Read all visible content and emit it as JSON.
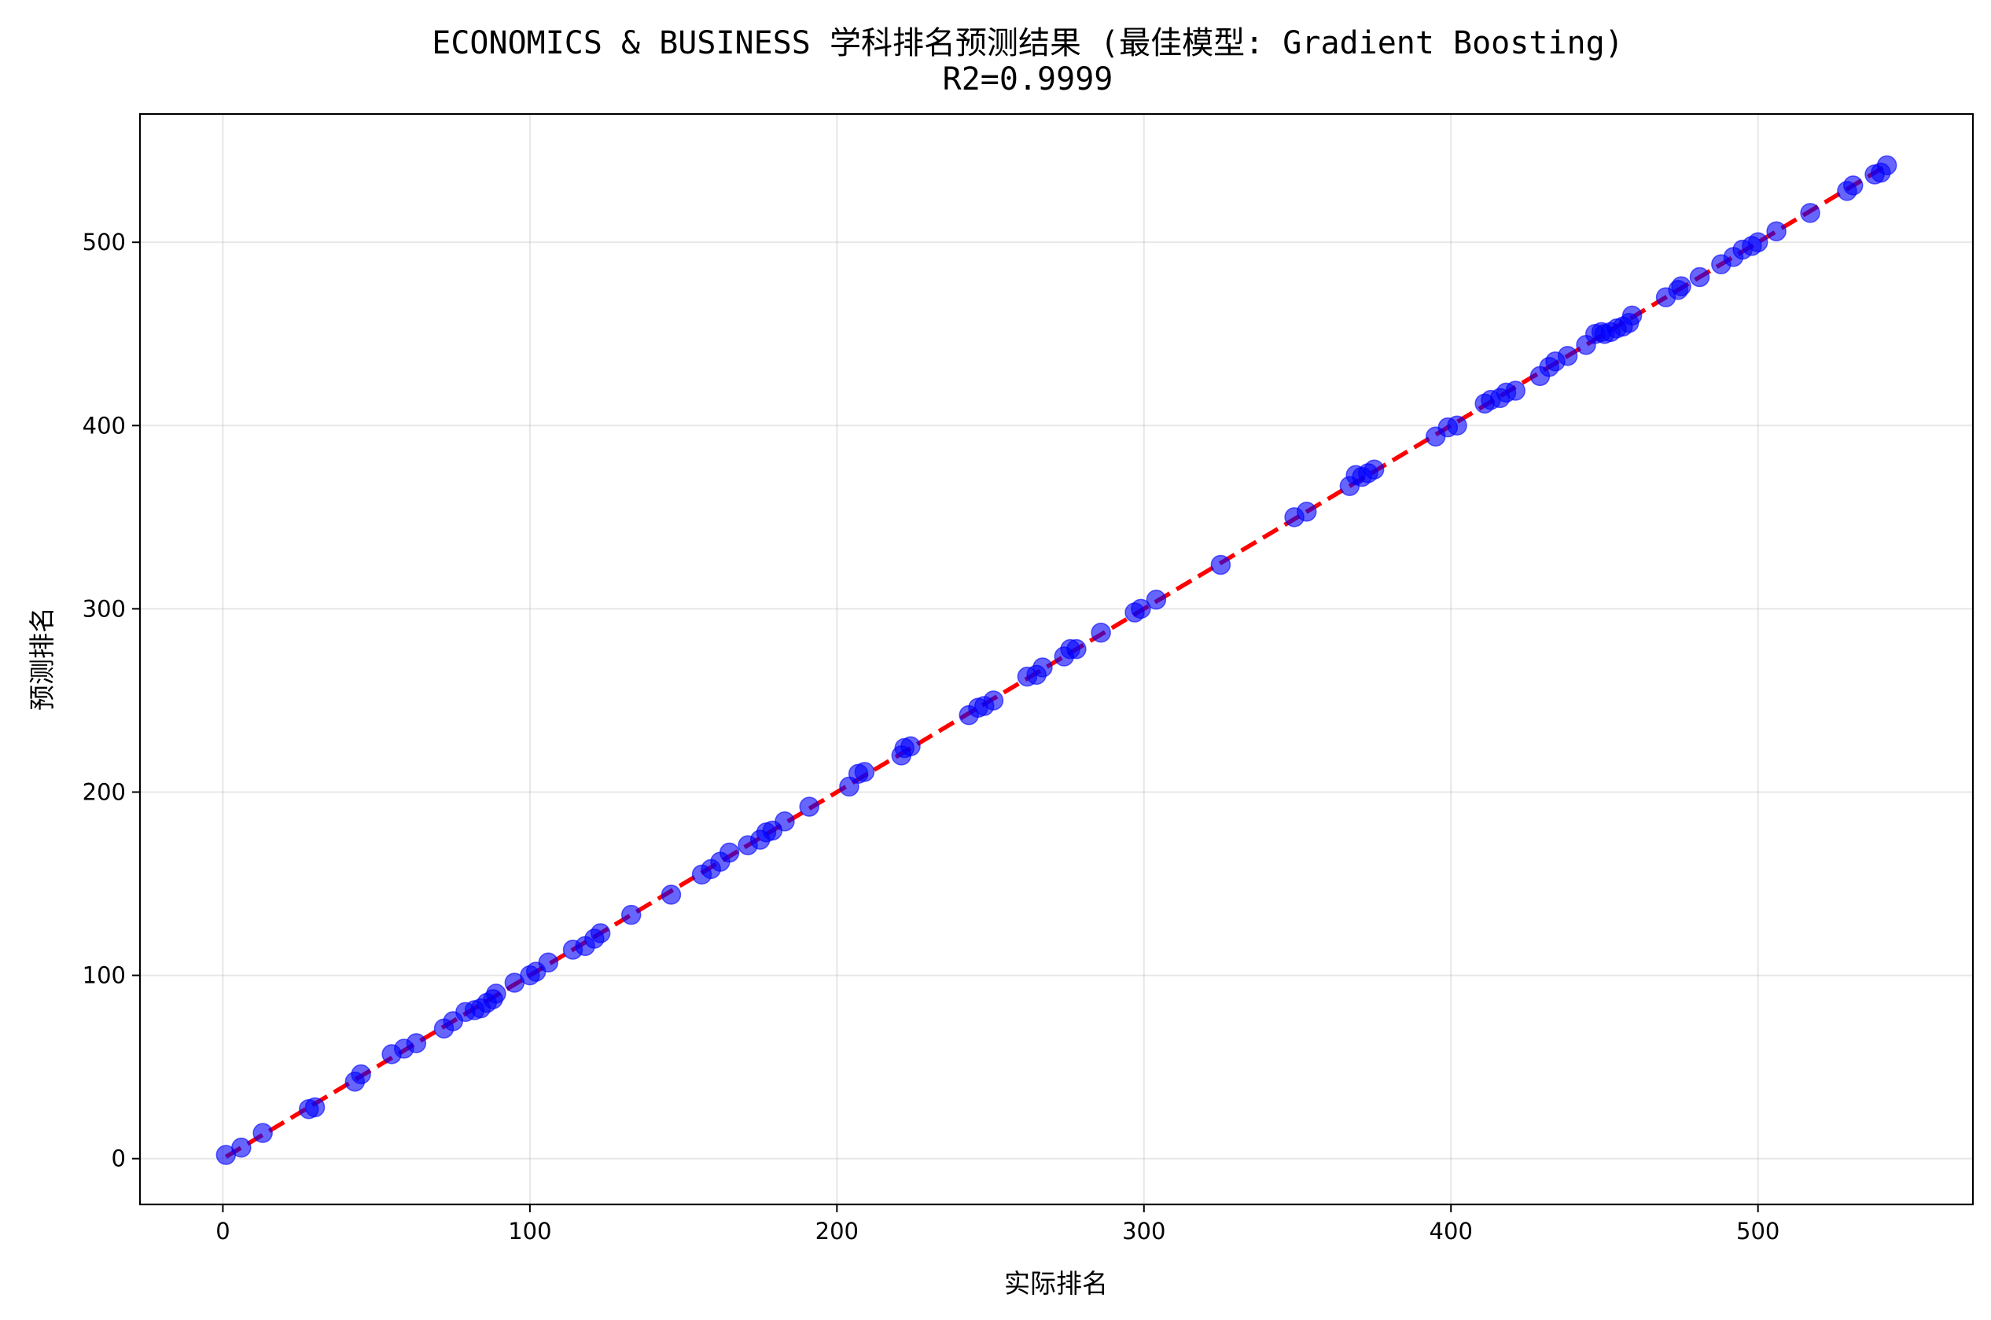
{
  "chart_data": {
    "type": "scatter",
    "title": "ECONOMICS & BUSINESS 学科排名预测结果 (最佳模型: Gradient Boosting)",
    "subtitle": "R2=0.9999",
    "xlabel": "实际排名",
    "ylabel": "预测排名",
    "xlim": [
      -27,
      570
    ],
    "ylim": [
      -25,
      570
    ],
    "xticks": [
      0,
      100,
      200,
      300,
      400,
      500
    ],
    "yticks": [
      0,
      100,
      200,
      300,
      400,
      500
    ],
    "grid": true,
    "series": [
      {
        "kind": "scatter",
        "color": "#0000ff",
        "points": [
          [
            1,
            2
          ],
          [
            6,
            6
          ],
          [
            13,
            14
          ],
          [
            28,
            27
          ],
          [
            30,
            28
          ],
          [
            43,
            42
          ],
          [
            45,
            46
          ],
          [
            55,
            57
          ],
          [
            59,
            60
          ],
          [
            63,
            63
          ],
          [
            72,
            71
          ],
          [
            75,
            75
          ],
          [
            79,
            80
          ],
          [
            82,
            81
          ],
          [
            84,
            82
          ],
          [
            86,
            85
          ],
          [
            88,
            87
          ],
          [
            89,
            90
          ],
          [
            95,
            96
          ],
          [
            100,
            100
          ],
          [
            102,
            102
          ],
          [
            106,
            107
          ],
          [
            114,
            114
          ],
          [
            118,
            116
          ],
          [
            121,
            120
          ],
          [
            123,
            123
          ],
          [
            133,
            133
          ],
          [
            146,
            144
          ],
          [
            156,
            155
          ],
          [
            159,
            158
          ],
          [
            162,
            162
          ],
          [
            165,
            167
          ],
          [
            171,
            171
          ],
          [
            175,
            174
          ],
          [
            177,
            178
          ],
          [
            179,
            179
          ],
          [
            183,
            184
          ],
          [
            191,
            192
          ],
          [
            204,
            203
          ],
          [
            207,
            210
          ],
          [
            209,
            211
          ],
          [
            221,
            220
          ],
          [
            222,
            224
          ],
          [
            224,
            225
          ],
          [
            243,
            242
          ],
          [
            246,
            246
          ],
          [
            248,
            247
          ],
          [
            251,
            250
          ],
          [
            262,
            263
          ],
          [
            265,
            264
          ],
          [
            267,
            268
          ],
          [
            274,
            274
          ],
          [
            276,
            278
          ],
          [
            278,
            278
          ],
          [
            286,
            287
          ],
          [
            297,
            298
          ],
          [
            299,
            300
          ],
          [
            304,
            305
          ],
          [
            325,
            324
          ],
          [
            349,
            350
          ],
          [
            353,
            353
          ],
          [
            367,
            367
          ],
          [
            369,
            373
          ],
          [
            371,
            372
          ],
          [
            373,
            374
          ],
          [
            375,
            376
          ],
          [
            395,
            394
          ],
          [
            399,
            399
          ],
          [
            402,
            400
          ],
          [
            411,
            412
          ],
          [
            413,
            414
          ],
          [
            416,
            415
          ],
          [
            418,
            418
          ],
          [
            421,
            419
          ],
          [
            429,
            427
          ],
          [
            432,
            432
          ],
          [
            434,
            435
          ],
          [
            438,
            438
          ],
          [
            444,
            444
          ],
          [
            447,
            450
          ],
          [
            449,
            451
          ],
          [
            450,
            450
          ],
          [
            452,
            451
          ],
          [
            454,
            453
          ],
          [
            456,
            454
          ],
          [
            458,
            456
          ],
          [
            459,
            460
          ],
          [
            470,
            470
          ],
          [
            474,
            474
          ],
          [
            475,
            476
          ],
          [
            481,
            481
          ],
          [
            488,
            488
          ],
          [
            492,
            492
          ],
          [
            495,
            496
          ],
          [
            498,
            498
          ],
          [
            500,
            500
          ],
          [
            506,
            506
          ],
          [
            517,
            516
          ],
          [
            529,
            528
          ],
          [
            531,
            531
          ],
          [
            538,
            537
          ],
          [
            540,
            538
          ],
          [
            542,
            542
          ]
        ]
      },
      {
        "kind": "line",
        "color": "#ff0000",
        "style": "dashed",
        "points": [
          [
            1,
            1
          ],
          [
            542,
            542
          ]
        ]
      }
    ]
  }
}
